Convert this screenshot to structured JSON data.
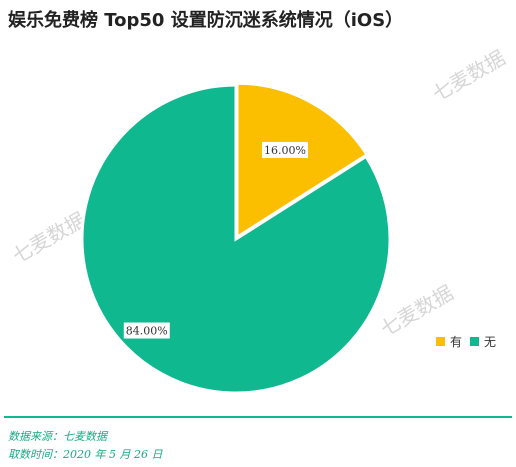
{
  "title": "娱乐免费榜 Top50 设置防沉迷系统情况（iOS）",
  "watermark_text": "七麦数据",
  "colors": {
    "accent": "#0fb88f",
    "yellow": "#fbbf00",
    "footer_text": "#1aaa86"
  },
  "chart_data": {
    "type": "pie",
    "title": "娱乐免费榜 Top50 设置防沉迷系统情况（iOS）",
    "slices": [
      {
        "label": "有",
        "value": 16.0,
        "display": "16.00%",
        "color": "#fbbf00"
      },
      {
        "label": "无",
        "value": 84.0,
        "display": "84.00%",
        "color": "#0fb88f"
      }
    ],
    "legend_position": "right"
  },
  "legend": [
    {
      "label": "有",
      "color": "#fbbf00"
    },
    {
      "label": "无",
      "color": "#0fb88f"
    }
  ],
  "footer": {
    "source": "数据来源：七麦数据",
    "date": "取数时间：2020 年 5 月 26 日"
  }
}
